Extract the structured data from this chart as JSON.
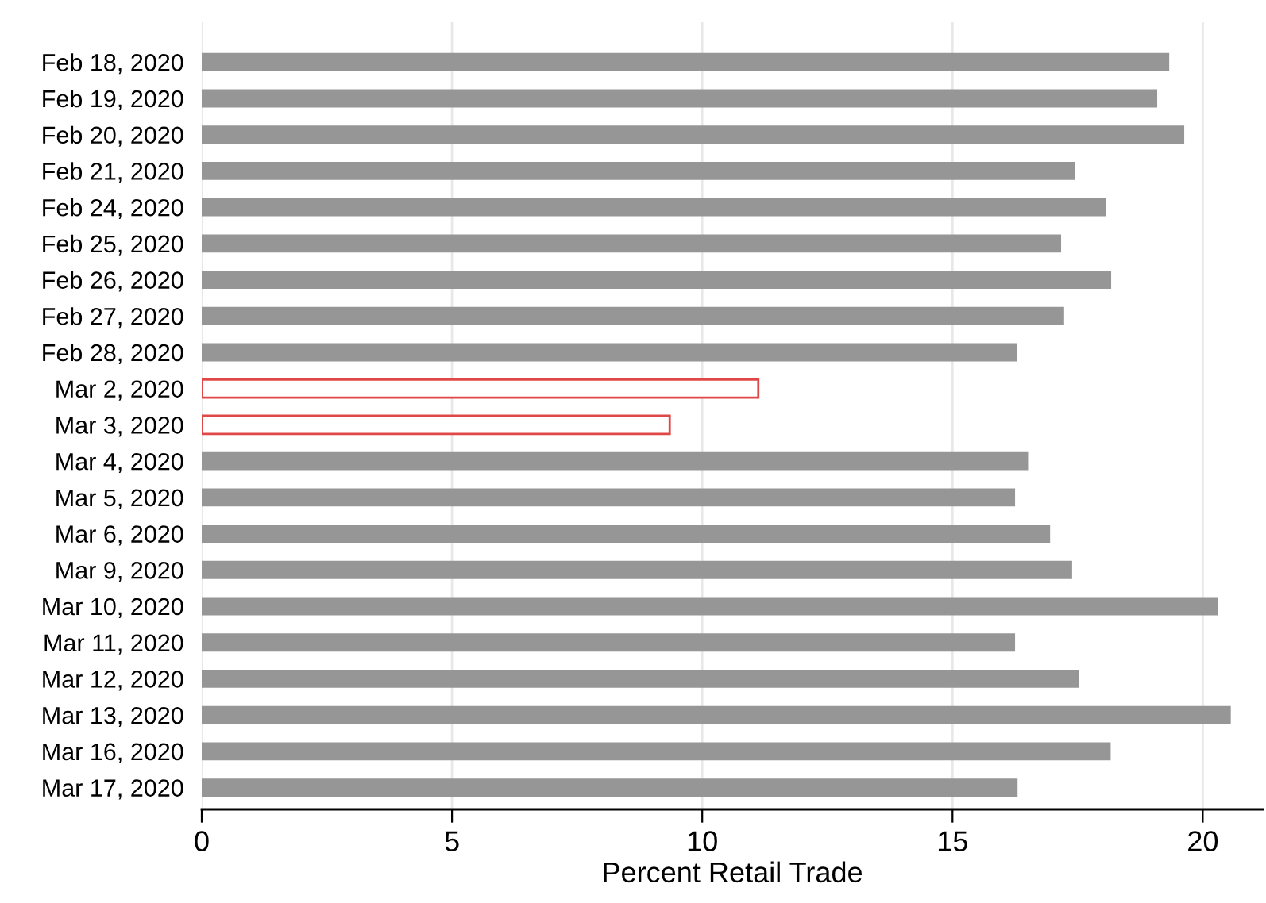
{
  "chart_data": {
    "type": "bar",
    "orientation": "horizontal",
    "xlabel": "Percent Retail Trade",
    "categories": [
      "Feb 18, 2020",
      "Feb 19, 2020",
      "Feb 20, 2020",
      "Feb 21, 2020",
      "Feb 24, 2020",
      "Feb 25, 2020",
      "Feb 26, 2020",
      "Feb 27, 2020",
      "Feb 28, 2020",
      "Mar 2, 2020",
      "Mar 3, 2020",
      "Mar 4, 2020",
      "Mar 5, 2020",
      "Mar 6, 2020",
      "Mar 9, 2020",
      "Mar 10, 2020",
      "Mar 11, 2020",
      "Mar 12, 2020",
      "Mar 13, 2020",
      "Mar 16, 2020",
      "Mar 17, 2020"
    ],
    "values": [
      19.33,
      19.09,
      19.63,
      17.45,
      18.06,
      17.17,
      18.17,
      17.23,
      16.29,
      11.12,
      9.35,
      16.51,
      16.25,
      16.95,
      17.39,
      20.31,
      16.25,
      17.53,
      20.56,
      18.16,
      16.3
    ],
    "colors": [
      "#969696",
      "#969696",
      "#969696",
      "#969696",
      "#969696",
      "#969696",
      "#969696",
      "#969696",
      "#969696",
      "#e04848",
      "#e04848",
      "#969696",
      "#969696",
      "#969696",
      "#969696",
      "#969696",
      "#969696",
      "#969696",
      "#969696",
      "#969696",
      "#969696"
    ],
    "xlim": [
      0,
      21.2
    ],
    "xticks": [
      0,
      5,
      10,
      15,
      20
    ],
    "grid": "x"
  }
}
